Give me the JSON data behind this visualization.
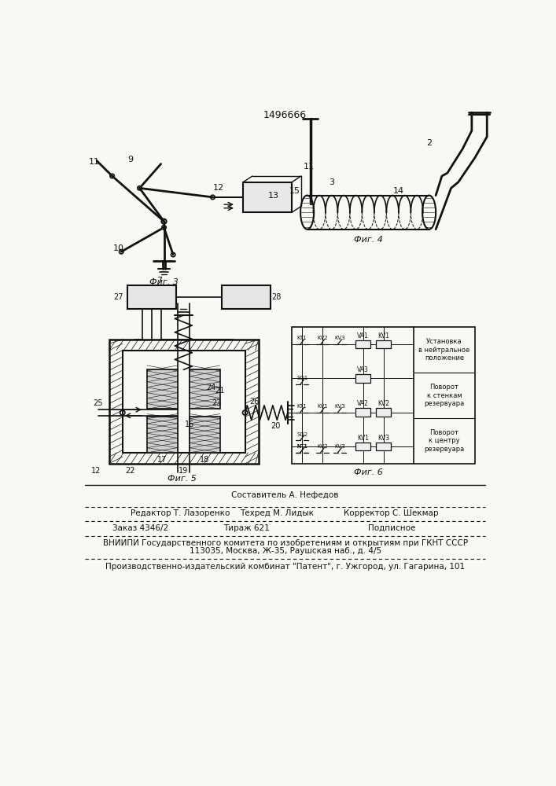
{
  "patent_number": "1496666",
  "bg": "#f8f8f4",
  "lc": "#111111",
  "fig3_label": "Фиг. 3",
  "fig4_label": "Фиг. 4",
  "fig5_label": "Фиг. 5",
  "fig6_label": "Фиг. 6",
  "footer_line0": "Составитель А. Нефедов",
  "footer_line1a": "Редактор Т. Лазоренко",
  "footer_line1b": "Техред М. Лидык",
  "footer_line1c": "Корректор С. Шекмар",
  "footer_line2a": "Заказ 4346/2",
  "footer_line2b": "Тираж 621",
  "footer_line2c": "Подписное",
  "footer_line3": "ВНИИПИ Государственного комитета по изобретениям и открытиям при ГКНТ СССР",
  "footer_line4": "113035, Москва, Ж-35, Раушская наб., д. 4/5",
  "footer_line5": "Производственно-издательский комбинат \"Патент\", г. Ужгород, ул. Гагарина, 101",
  "r1_label": "Поворот\nк центру\nрезервуара",
  "r2_label": "Поворот\nк стенкам\nрезервуара",
  "r3_label": "Установка\nв нейтральное\nположение"
}
